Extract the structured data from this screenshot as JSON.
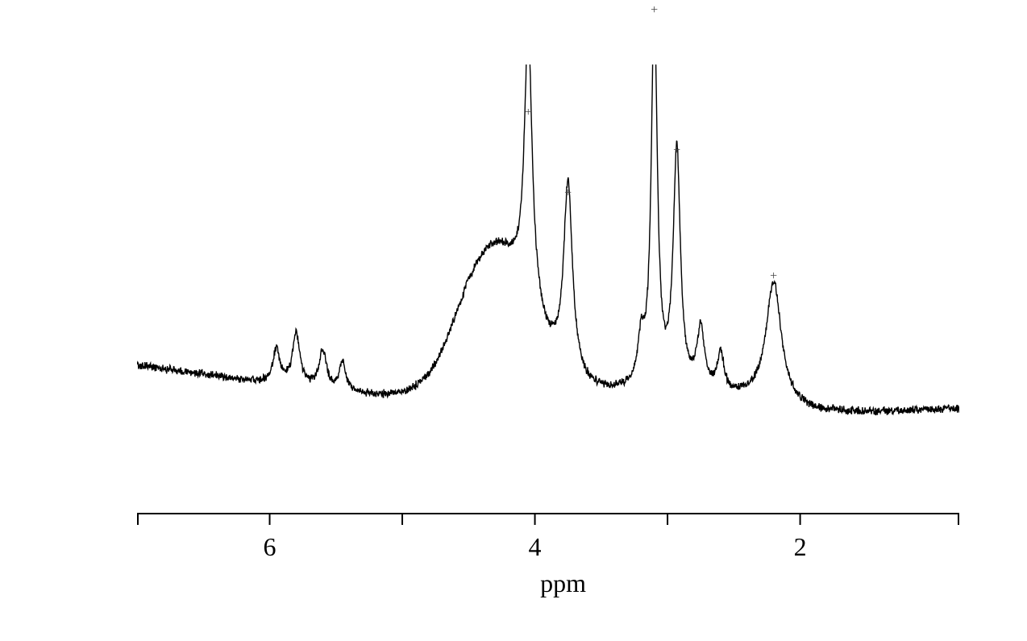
{
  "spectrum": {
    "type": "line",
    "xlabel": "ppm",
    "label_fontsize": 32,
    "xlim": [
      7.0,
      0.8
    ],
    "xticks": [
      6,
      4,
      2
    ],
    "line_color": "#000000",
    "line_width": 1.4,
    "background_color": "#ffffff",
    "axis_color": "#000000",
    "axis_width": 2,
    "tick_length": 14,
    "noise_amplitude": 0.015,
    "baseline_y": 0.72,
    "peaks": [
      {
        "ppm": 5.95,
        "height": 0.08,
        "width": 0.06
      },
      {
        "ppm": 5.8,
        "height": 0.12,
        "width": 0.07
      },
      {
        "ppm": 5.6,
        "height": 0.09,
        "width": 0.07
      },
      {
        "ppm": 5.45,
        "height": 0.07,
        "width": 0.06
      },
      {
        "ppm": 4.3,
        "height": 0.32,
        "width": 0.42,
        "shape": "broad"
      },
      {
        "ppm": 4.05,
        "height": 0.62,
        "width": 0.07,
        "marker": true
      },
      {
        "ppm": 3.75,
        "height": 0.44,
        "width": 0.08,
        "marker": true
      },
      {
        "ppm": 3.2,
        "height": 0.1,
        "width": 0.06
      },
      {
        "ppm": 3.1,
        "height": 0.87,
        "width": 0.055,
        "marker": true
      },
      {
        "ppm": 2.93,
        "height": 0.55,
        "width": 0.065,
        "marker": true
      },
      {
        "ppm": 2.75,
        "height": 0.14,
        "width": 0.07
      },
      {
        "ppm": 2.6,
        "height": 0.09,
        "width": 0.06
      },
      {
        "ppm": 2.2,
        "height": 0.28,
        "width": 0.14,
        "marker": true
      }
    ],
    "baseline_curve": [
      {
        "ppm": 7.0,
        "y": 0.69
      },
      {
        "ppm": 5.5,
        "y": 0.755
      },
      {
        "ppm": 4.8,
        "y": 0.765
      },
      {
        "ppm": 4.5,
        "y": 0.74
      },
      {
        "ppm": 3.5,
        "y": 0.755
      },
      {
        "ppm": 2.4,
        "y": 0.77
      },
      {
        "ppm": 1.9,
        "y": 0.8
      },
      {
        "ppm": 1.5,
        "y": 0.8
      },
      {
        "ppm": 0.8,
        "y": 0.79
      }
    ],
    "marker_symbol": "+",
    "marker_color": "#444444"
  }
}
